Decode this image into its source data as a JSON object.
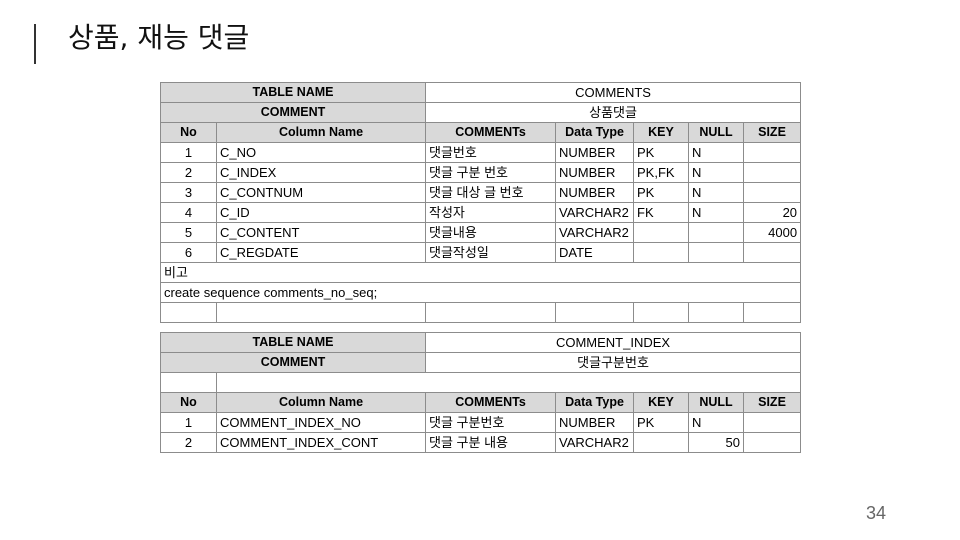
{
  "slide": {
    "title": "상품, 재능 댓글",
    "page_number": "34"
  },
  "table1": {
    "table_name_label": "TABLE NAME",
    "table_name": "COMMENTS",
    "comment_label": "COMMENT",
    "comment": "상품댓글",
    "headers": [
      "No",
      "Column Name",
      "COMMENTs",
      "Data Type",
      "KEY",
      "NULL",
      "SIZE"
    ],
    "rows": [
      {
        "no": "1",
        "column": "C_NO",
        "comment": "댓글번호",
        "type": "NUMBER",
        "key": "PK",
        "null": "N",
        "size": ""
      },
      {
        "no": "2",
        "column": "C_INDEX",
        "comment": "댓글 구분 번호",
        "type": "NUMBER",
        "key": "PK,FK",
        "null": "N",
        "size": ""
      },
      {
        "no": "3",
        "column": "C_CONTNUM",
        "comment": "댓글 대상 글 번호",
        "type": "NUMBER",
        "key": "PK",
        "null": "N",
        "size": ""
      },
      {
        "no": "4",
        "column": "C_ID",
        "comment": "작성자",
        "type": "VARCHAR2",
        "key": "FK",
        "null": "N",
        "size": "20"
      },
      {
        "no": "5",
        "column": "C_CONTENT",
        "comment": "댓글내용",
        "type": "VARCHAR2",
        "key": "",
        "null": "",
        "size": "4000"
      },
      {
        "no": "6",
        "column": "C_REGDATE",
        "comment": "댓글작성일",
        "type": "DATE",
        "key": "",
        "null": "",
        "size": ""
      }
    ],
    "remarks_label": "비고",
    "remarks": "create sequence comments_no_seq;"
  },
  "table2": {
    "table_name_label": "TABLE NAME",
    "table_name": "COMMENT_INDEX",
    "comment_label": "COMMENT",
    "comment": "댓글구분번호",
    "headers": [
      "No",
      "Column Name",
      "COMMENTs",
      "Data Type",
      "KEY",
      "NULL",
      "SIZE"
    ],
    "rows": [
      {
        "no": "1",
        "column": "COMMENT_INDEX_NO",
        "comment": "댓글 구분번호",
        "type": "NUMBER",
        "key": "PK",
        "null": "N",
        "size": ""
      },
      {
        "no": "2",
        "column": "COMMENT_INDEX_CONT",
        "comment": "댓글 구분 내용",
        "type": "VARCHAR2",
        "key": "",
        "null": "50",
        "size": ""
      }
    ]
  }
}
